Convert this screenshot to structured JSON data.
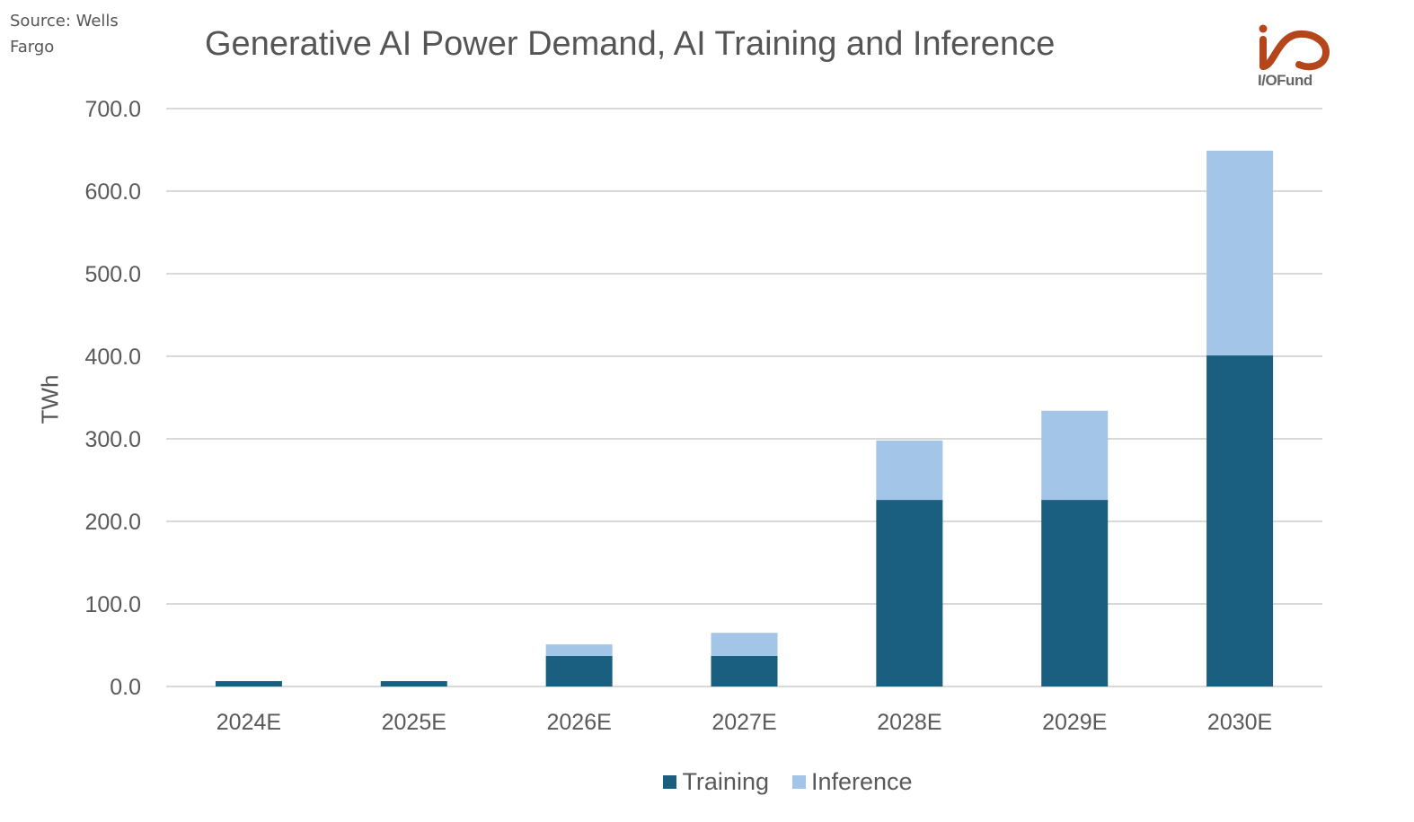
{
  "source": "Source: Wells Fargo",
  "logo": {
    "text": "I/OFund",
    "color": "#B5451B"
  },
  "colors": {
    "training": "#1A5E80",
    "inference": "#A3C6E8",
    "grid": "#D9D9D9",
    "text": "#595959"
  },
  "chart_data": {
    "type": "bar",
    "stacked": true,
    "title": "Generative AI Power Demand, AI Training and Inference",
    "xlabel": "",
    "ylabel": "TWh",
    "ylim": [
      0,
      700
    ],
    "yticks": [
      "0.0",
      "100.0",
      "200.0",
      "300.0",
      "400.0",
      "500.0",
      "600.0",
      "700.0"
    ],
    "ytick_values": [
      0,
      100,
      200,
      300,
      400,
      500,
      600,
      700
    ],
    "grid": true,
    "legend_position": "bottom",
    "categories": [
      "2024E",
      "2025E",
      "2026E",
      "2027E",
      "2028E",
      "2029E",
      "2030E"
    ],
    "series": [
      {
        "name": "Training",
        "values": [
          6.5,
          6.5,
          37,
          37,
          226,
          226,
          401
        ]
      },
      {
        "name": "Inference",
        "values": [
          0,
          0,
          14,
          28,
          72,
          108,
          248
        ]
      }
    ]
  }
}
